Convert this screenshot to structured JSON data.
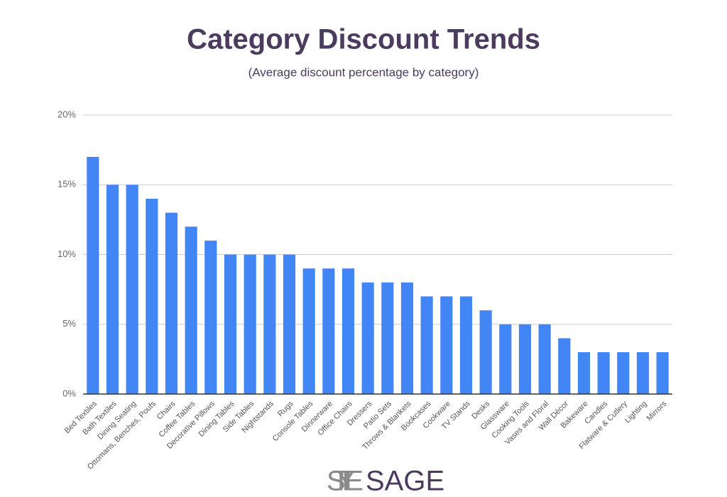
{
  "chart_data": {
    "type": "bar",
    "title": "Category Discount Trends",
    "subtitle": "(Average discount percentage by category)",
    "categories": [
      "Bed Textiles",
      "Bath Textiles",
      "Dining Seating",
      "Ottomans, Benches, Poufs",
      "Chairs",
      "Coffee Tables",
      "Decorative Pillows",
      "Dining Tables",
      "Side Tables",
      "Nightstands",
      "Rugs",
      "Console Tables",
      "Dinnerware",
      "Office Chairs",
      "Dressers",
      "Patio Sets",
      "Throws & Blankets",
      "Bookcases",
      "Cookware",
      "TV Stands",
      "Desks",
      "Glassware",
      "Cooking Tools",
      "Vases and Floral",
      "Wall Décor",
      "Bakeware",
      "Candles",
      "Flatware & Cutlery",
      "Lighting",
      "Mirrors"
    ],
    "values": [
      17,
      15,
      15,
      14,
      13,
      12,
      11,
      10,
      10,
      10,
      10,
      9,
      9,
      9,
      8,
      8,
      8,
      7,
      7,
      7,
      6,
      5,
      5,
      5,
      4,
      3,
      3,
      3,
      3,
      3
    ],
    "color": "#4285f4",
    "ylim": [
      0,
      20
    ],
    "yticks": [
      {
        "value": 0,
        "label": "0%"
      },
      {
        "value": 5,
        "label": "5%"
      },
      {
        "value": 10,
        "label": "10%"
      },
      {
        "value": 15,
        "label": "15%"
      },
      {
        "value": 20,
        "label": "20%"
      }
    ],
    "grid": true
  },
  "footer": {
    "brand_left": "STYLE",
    "brand_right": "SAGE"
  }
}
